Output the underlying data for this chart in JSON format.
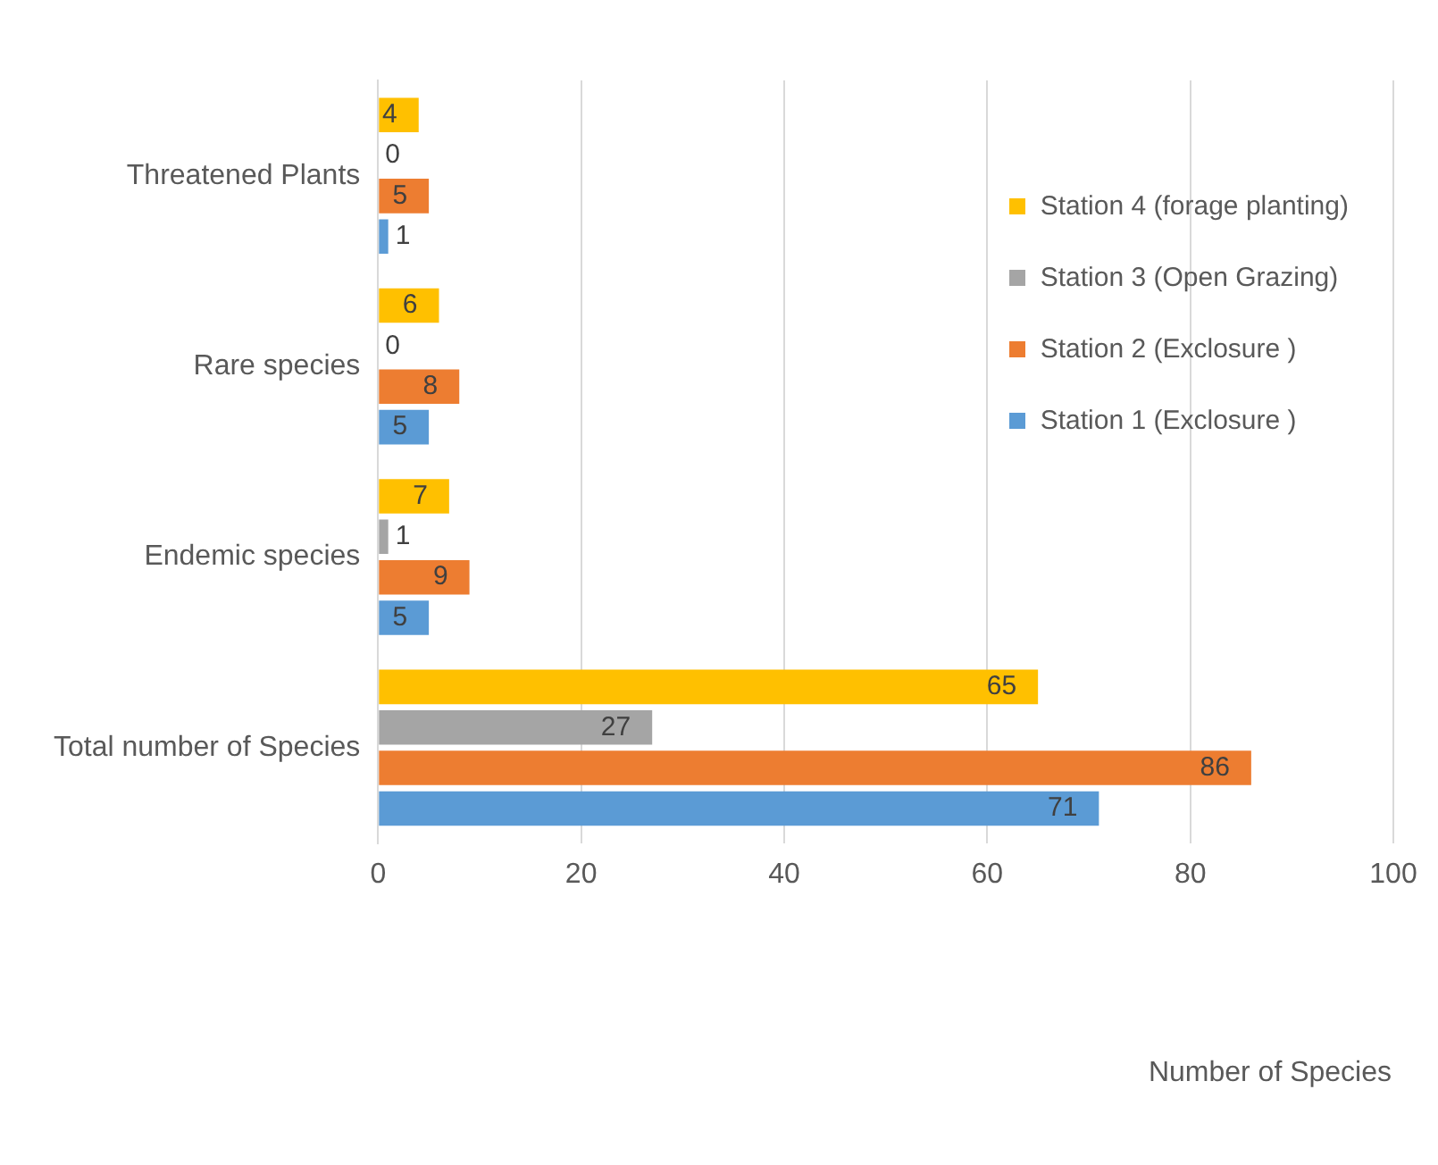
{
  "chart_data": {
    "type": "bar",
    "orientation": "horizontal",
    "annotations": [
      "Number of Species"
    ],
    "categories": [
      "Threatened Plants",
      "Rare species",
      "Endemic species",
      "Total number of Species"
    ],
    "series": [
      {
        "name": "Station 4 (forage planting)",
        "color": "#ffc000",
        "values": [
          4,
          6,
          7,
          65
        ]
      },
      {
        "name": "Station 3 (Open Grazing)",
        "color": "#a5a5a5",
        "values": [
          0,
          0,
          1,
          27
        ]
      },
      {
        "name": "Station 2 (Exclosure )",
        "color": "#ed7d31",
        "values": [
          5,
          8,
          9,
          86
        ]
      },
      {
        "name": "Station 1 (Exclosure )",
        "color": "#5b9bd5",
        "values": [
          1,
          5,
          5,
          71
        ]
      }
    ],
    "xlim": [
      0,
      100
    ],
    "xticks": [
      0,
      20,
      40,
      60,
      80,
      100
    ],
    "grid": "x",
    "legend": "top right",
    "data_labels": true
  }
}
